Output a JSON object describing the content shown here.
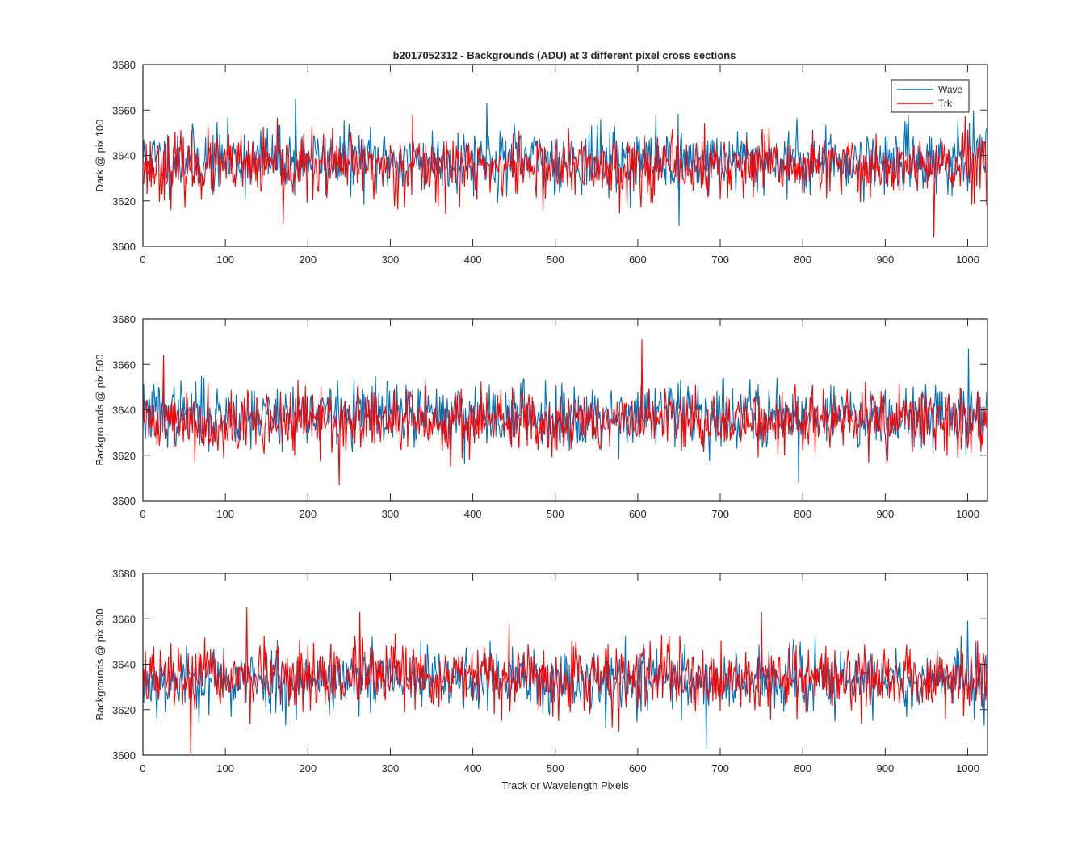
{
  "figure": {
    "title": "b2017052312 - Backgrounds (ADU) at 3 different pixel cross sections"
  },
  "chart_data": [
    {
      "type": "line",
      "title": "b2017052312 - Backgrounds (ADU) at 3 different pixel cross sections",
      "xlabel": "",
      "ylabel": "Dark @ pix 100",
      "xlim": [
        0,
        1024
      ],
      "ylim": [
        3600,
        3680
      ],
      "xticks": [
        0,
        100,
        200,
        300,
        400,
        500,
        600,
        700,
        800,
        900,
        1000
      ],
      "yticks": [
        3600,
        3620,
        3640,
        3660,
        3680
      ],
      "grid": false,
      "legend": {
        "placement": "top-right",
        "entries": [
          "Wave",
          "Trk"
        ]
      },
      "series": [
        {
          "name": "Wave",
          "color": "#0072BD",
          "n_points": 1024,
          "mean": 3638,
          "noise_sd": 7,
          "seed": 11,
          "spikes": [
            [
              185,
              3665
            ],
            [
              417,
              3663
            ],
            [
              650,
              3609
            ],
            [
              1023,
              3652
            ]
          ]
        },
        {
          "name": "Trk",
          "color": "#FF0000",
          "n_points": 1024,
          "mean": 3635,
          "noise_sd": 7,
          "seed": 23,
          "spikes": [
            [
              170,
              3610
            ],
            [
              327,
              3658
            ],
            [
              959,
              3604
            ],
            [
              1023,
              3618
            ]
          ]
        }
      ]
    },
    {
      "type": "line",
      "title": "",
      "xlabel": "",
      "ylabel": "Backgrounds @ pix 500",
      "xlim": [
        0,
        1024
      ],
      "ylim": [
        3600,
        3680
      ],
      "xticks": [
        0,
        100,
        200,
        300,
        400,
        500,
        600,
        700,
        800,
        900,
        1000
      ],
      "yticks": [
        3600,
        3620,
        3640,
        3660,
        3680
      ],
      "grid": false,
      "series": [
        {
          "name": "Wave",
          "color": "#0072BD",
          "n_points": 1024,
          "mean": 3638,
          "noise_sd": 7,
          "seed": 37,
          "spikes": [
            [
              795,
              3608
            ],
            [
              1001,
              3667
            ],
            [
              1023,
              3648
            ]
          ]
        },
        {
          "name": "Trk",
          "color": "#FF0000",
          "n_points": 1024,
          "mean": 3635,
          "noise_sd": 7,
          "seed": 41,
          "spikes": [
            [
              25,
              3664
            ],
            [
              238,
              3607
            ],
            [
              605,
              3671
            ],
            [
              1023,
              3632
            ]
          ]
        }
      ]
    },
    {
      "type": "line",
      "title": "",
      "xlabel": "Track or Wavelength Pixels",
      "ylabel": "Backgrounds @ pix 900",
      "xlim": [
        0,
        1024
      ],
      "ylim": [
        3600,
        3680
      ],
      "xticks": [
        0,
        100,
        200,
        300,
        400,
        500,
        600,
        700,
        800,
        900,
        1000
      ],
      "yticks": [
        3600,
        3620,
        3640,
        3660,
        3680
      ],
      "grid": false,
      "series": [
        {
          "name": "Wave",
          "color": "#0072BD",
          "n_points": 1024,
          "mean": 3633,
          "noise_sd": 7,
          "seed": 53,
          "spikes": [
            [
              683,
              3603
            ],
            [
              1000,
              3659
            ],
            [
              1023,
              3626
            ]
          ]
        },
        {
          "name": "Trk",
          "color": "#FF0000",
          "n_points": 1024,
          "mean": 3634,
          "noise_sd": 7,
          "seed": 67,
          "spikes": [
            [
              58,
              3600
            ],
            [
              126,
              3665
            ],
            [
              263,
              3663
            ],
            [
              750,
              3663
            ],
            [
              1023,
              3640
            ]
          ]
        }
      ]
    }
  ]
}
